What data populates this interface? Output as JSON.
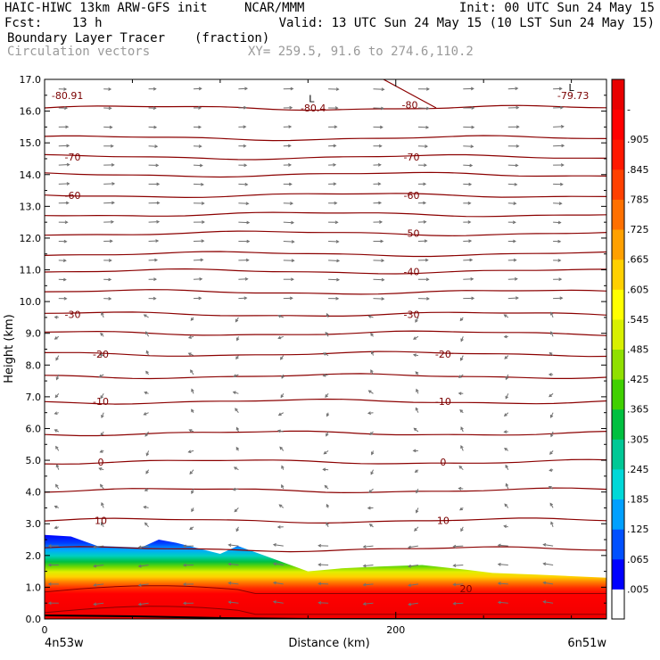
{
  "header": {
    "line1_left": "HAIC-HIWC 13km ARW-GFS init",
    "line1_mid": "NCAR/MMM",
    "line1_right": "Init: 00 UTC Sun 24 May 15",
    "line2_left": "Fcst:    13 h",
    "line2_right": "Valid: 13 UTC Sun 24 May 15 (10 LST Sun 24 May 15)",
    "field_name": "Boundary Layer Tracer",
    "field_units": "(fraction)",
    "vector_name": "Circulation vectors",
    "xy_text": "XY= 259.5, 91.6 to 274.6,110.2"
  },
  "chart_data": {
    "type": "heatmap",
    "xlabel": "Distance (km)",
    "ylabel": "Height (km)",
    "xlim": [
      0,
      320
    ],
    "ylim": [
      0,
      17
    ],
    "x_ticks": [
      0,
      200
    ],
    "x_tick_labels": [
      "0",
      "200"
    ],
    "y_ticks": [
      0,
      1,
      2,
      3,
      4,
      5,
      6,
      7,
      8,
      9,
      10,
      11,
      12,
      13,
      14,
      15,
      16,
      17
    ],
    "y_tick_labels": [
      "0.0",
      "1.0",
      "2.0",
      "3.0",
      "4.0",
      "5.0",
      "6.0",
      "7.0",
      "8.0",
      "9.0",
      "10.0",
      "11.0",
      "12.0",
      "13.0",
      "14.0",
      "15.0",
      "16.0",
      "17.0"
    ],
    "endpoint_left": "4n53w",
    "endpoint_right": "6n51w",
    "colorbar": {
      "labels": [
        ".005",
        ".065",
        ".125",
        ".185",
        ".245",
        ".305",
        ".365",
        ".425",
        ".485",
        ".545",
        ".605",
        ".665",
        ".725",
        ".785",
        ".845",
        ".905",
        "-"
      ],
      "colors": [
        "#ffffff",
        "#0000ff",
        "#0050ff",
        "#00a0ff",
        "#00d8d8",
        "#00c896",
        "#00c040",
        "#40d000",
        "#90e000",
        "#d8f000",
        "#ffff00",
        "#ffd000",
        "#ffa000",
        "#ff7000",
        "#ff4000",
        "#ff1800",
        "#ff0000",
        "#e80000"
      ]
    },
    "tracer_top_km": [
      [
        0,
        2.65
      ],
      [
        15,
        2.6
      ],
      [
        30,
        2.3
      ],
      [
        55,
        2.25
      ],
      [
        65,
        2.5
      ],
      [
        75,
        2.4
      ],
      [
        100,
        2.05
      ],
      [
        110,
        2.3
      ],
      [
        125,
        2.0
      ],
      [
        150,
        1.5
      ],
      [
        170,
        1.6
      ],
      [
        190,
        1.65
      ],
      [
        215,
        1.7
      ],
      [
        240,
        1.55
      ],
      [
        255,
        1.45
      ],
      [
        280,
        1.4
      ],
      [
        300,
        1.35
      ],
      [
        320,
        1.3
      ]
    ],
    "contour_labels": [
      {
        "text": "-80.91",
        "x": 13,
        "y": 16.5
      },
      {
        "text": "-80.4",
        "x": 153,
        "y": 16.1
      },
      {
        "text": "-80",
        "x": 208,
        "y": 16.2
      },
      {
        "text": "-79.73",
        "x": 301,
        "y": 16.5
      },
      {
        "text": "-70",
        "x": 16,
        "y": 14.55
      },
      {
        "text": "-70",
        "x": 209,
        "y": 14.55
      },
      {
        "text": "-60",
        "x": 16,
        "y": 13.35
      },
      {
        "text": "-60",
        "x": 209,
        "y": 13.35
      },
      {
        "text": "-50",
        "x": 209,
        "y": 12.15
      },
      {
        "text": "-40",
        "x": 209,
        "y": 10.95
      },
      {
        "text": "-30",
        "x": 16,
        "y": 9.6
      },
      {
        "text": "-30",
        "x": 209,
        "y": 9.6
      },
      {
        "text": "-20",
        "x": 32,
        "y": 8.35
      },
      {
        "text": "-20",
        "x": 227,
        "y": 8.35
      },
      {
        "text": "-10",
        "x": 32,
        "y": 6.85
      },
      {
        "text": "-10",
        "x": 227,
        "y": 6.85
      },
      {
        "text": "0",
        "x": 32,
        "y": 4.95
      },
      {
        "text": "0",
        "x": 227,
        "y": 4.95
      },
      {
        "text": "10",
        "x": 32,
        "y": 3.1
      },
      {
        "text": "10",
        "x": 227,
        "y": 3.1
      },
      {
        "text": "20",
        "x": 240,
        "y": 0.95
      },
      {
        "text": "L",
        "x": 152,
        "y": 16.4
      },
      {
        "text": "L",
        "x": 300,
        "y": 16.75
      }
    ],
    "contour_levels_km": [
      16.1,
      15.15,
      14.55,
      14.0,
      13.35,
      12.75,
      12.15,
      11.5,
      10.95,
      10.3,
      9.6,
      9.0,
      8.35,
      7.65,
      6.85,
      5.85,
      4.95,
      4.05,
      3.1,
      2.2
    ]
  }
}
